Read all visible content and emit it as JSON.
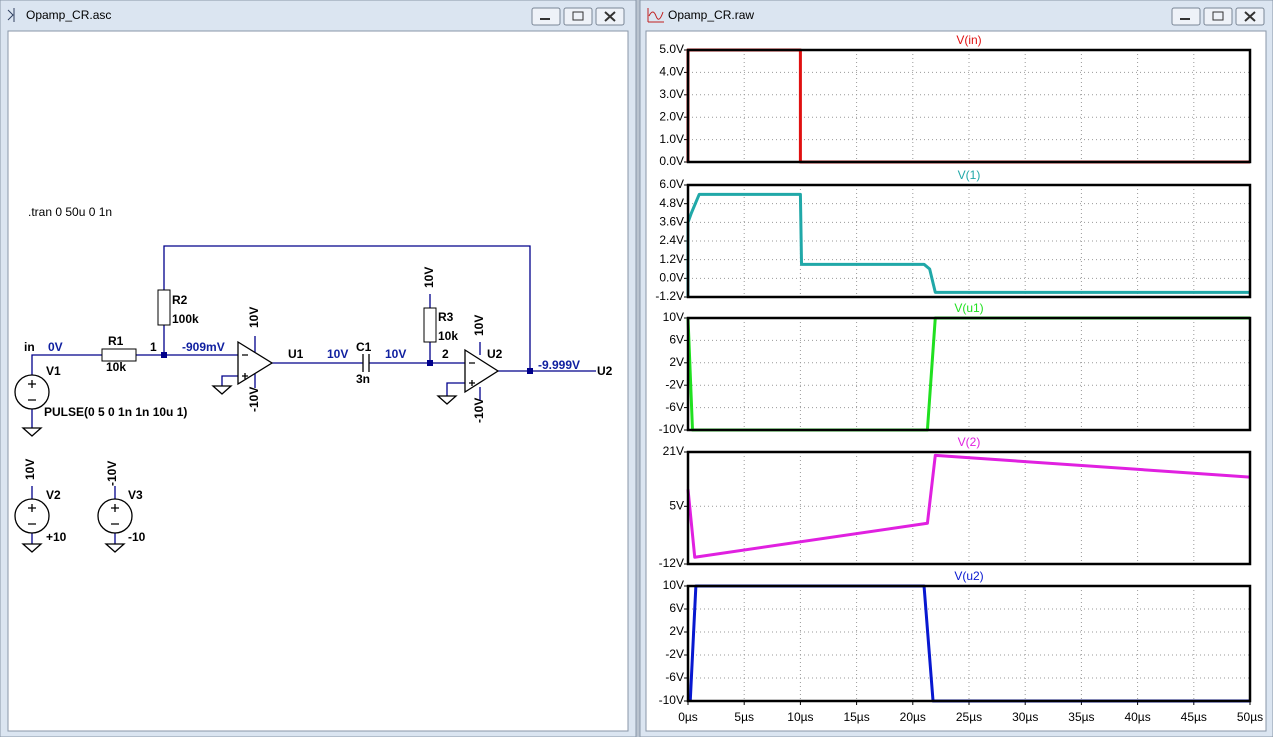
{
  "schematic_window": {
    "title": "Opamp_CR.asc",
    "directive": ".tran 0 50u 0 1n",
    "net_labels": [
      "in",
      "U2"
    ],
    "node_numbers": [
      "1",
      "2"
    ],
    "node_voltages": [
      "0V",
      "-909mV",
      "10V",
      "10V",
      "-9.999V"
    ],
    "components": [
      {
        "name": "R1",
        "value": "10k"
      },
      {
        "name": "R2",
        "value": "100k"
      },
      {
        "name": "R3",
        "value": "10k"
      },
      {
        "name": "C1",
        "value": "3n"
      },
      {
        "name": "U1"
      },
      {
        "name": "U2"
      },
      {
        "name": "V1",
        "value": "PULSE(0 5 0 1n 1n 10u 1)"
      },
      {
        "name": "V2",
        "value": "+10"
      },
      {
        "name": "V3",
        "value": "-10"
      }
    ],
    "supply_labels": [
      "10V",
      "-10V",
      "10V",
      "10V",
      "-10V",
      "10V",
      "-10V"
    ]
  },
  "waveform_window": {
    "title": "Opamp_CR.raw"
  },
  "chart_data": [
    {
      "type": "line",
      "title": "V(in)",
      "color": "#e01010",
      "xlim": [
        0,
        50
      ],
      "x": [
        0,
        0,
        10,
        10,
        50
      ],
      "values": [
        0,
        5,
        5,
        0,
        0
      ],
      "ylim": [
        0,
        5
      ],
      "yticks": [
        {
          "value": 0,
          "label": "0.0V"
        },
        {
          "value": 1,
          "label": "1.0V"
        },
        {
          "value": 2,
          "label": "2.0V"
        },
        {
          "value": 3,
          "label": "3.0V"
        },
        {
          "value": 4,
          "label": "4.0V"
        },
        {
          "value": 5,
          "label": "5.0V"
        }
      ],
      "grid": true
    },
    {
      "type": "line",
      "title": "V(1)",
      "color": "#20a8a8",
      "xlim": [
        0,
        50
      ],
      "x": [
        0,
        0,
        0.3,
        1,
        10,
        10.1,
        21,
        21.5,
        22,
        50
      ],
      "values": [
        -1.2,
        3.6,
        4.2,
        5.4,
        5.4,
        0.9,
        0.9,
        0.6,
        -0.9,
        -0.9
      ],
      "ylim": [
        -1.2,
        6
      ],
      "yticks": [
        {
          "value": -1.2,
          "label": "-1.2V"
        },
        {
          "value": 0,
          "label": "0.0V"
        },
        {
          "value": 1.2,
          "label": "1.2V"
        },
        {
          "value": 2.4,
          "label": "2.4V"
        },
        {
          "value": 3.6,
          "label": "3.6V"
        },
        {
          "value": 4.8,
          "label": "4.8V"
        },
        {
          "value": 6,
          "label": "6.0V"
        }
      ],
      "grid": true
    },
    {
      "type": "line",
      "title": "V(u1)",
      "color": "#20e020",
      "xlim": [
        0,
        50
      ],
      "x": [
        0,
        0.4,
        21.3,
        22,
        50
      ],
      "values": [
        10,
        -10,
        -10,
        10,
        10
      ],
      "ylim": [
        -10,
        10
      ],
      "yticks": [
        {
          "value": -10,
          "label": "-10V"
        },
        {
          "value": -6,
          "label": "-6V"
        },
        {
          "value": -2,
          "label": "-2V"
        },
        {
          "value": 2,
          "label": "2V"
        },
        {
          "value": 6,
          "label": "6V"
        },
        {
          "value": 10,
          "label": "10V"
        }
      ],
      "grid": true
    },
    {
      "type": "line",
      "title": "V(2)",
      "color": "#e020e0",
      "xlim": [
        0,
        50
      ],
      "x": [
        0,
        0.6,
        21.3,
        22,
        50
      ],
      "values": [
        10,
        -10,
        0,
        20,
        13.6
      ],
      "ylim": [
        -12,
        21
      ],
      "yticks": [
        {
          "value": -12,
          "label": "-12V"
        },
        {
          "value": 5,
          "label": "5V"
        },
        {
          "value": 21,
          "label": "21V"
        }
      ],
      "grid": true
    },
    {
      "type": "line",
      "title": "V(u2)",
      "color": "#0818d0",
      "xlim": [
        0,
        50
      ],
      "x": [
        0.2,
        0.7,
        21,
        21.8,
        50
      ],
      "values": [
        -10,
        10,
        10,
        -10,
        -10
      ],
      "ylim": [
        -10,
        10
      ],
      "yticks": [
        {
          "value": -10,
          "label": "-10V"
        },
        {
          "value": -6,
          "label": "-6V"
        },
        {
          "value": -2,
          "label": "-2V"
        },
        {
          "value": 2,
          "label": "2V"
        },
        {
          "value": 6,
          "label": "6V"
        },
        {
          "value": 10,
          "label": "10V"
        }
      ],
      "xticks": [
        {
          "value": 0,
          "label": "0µs"
        },
        {
          "value": 5,
          "label": "5µs"
        },
        {
          "value": 10,
          "label": "10µs"
        },
        {
          "value": 15,
          "label": "15µs"
        },
        {
          "value": 20,
          "label": "20µs"
        },
        {
          "value": 25,
          "label": "25µs"
        },
        {
          "value": 30,
          "label": "30µs"
        },
        {
          "value": 35,
          "label": "35µs"
        },
        {
          "value": 40,
          "label": "40µs"
        },
        {
          "value": 45,
          "label": "45µs"
        },
        {
          "value": 50,
          "label": "50µs"
        }
      ],
      "grid": true
    }
  ]
}
